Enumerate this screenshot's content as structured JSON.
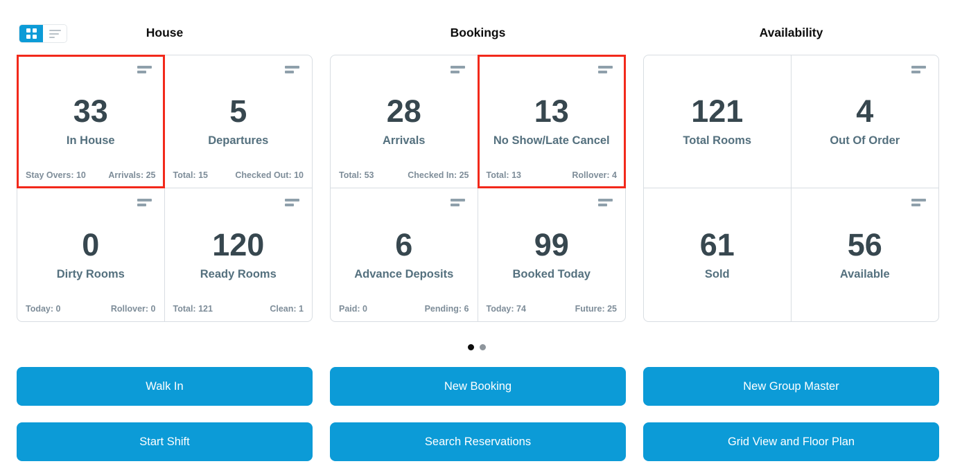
{
  "view_toggle": {
    "active_view": "grid"
  },
  "sections": [
    {
      "title": "House",
      "cards": [
        {
          "value": "33",
          "label": "In House",
          "highlighted": true,
          "has_menu_icon": true,
          "stat_left": "Stay Overs: 10",
          "stat_right": "Arrivals: 25"
        },
        {
          "value": "5",
          "label": "Departures",
          "highlighted": false,
          "has_menu_icon": true,
          "stat_left": "Total: 15",
          "stat_right": "Checked Out: 10"
        },
        {
          "value": "0",
          "label": "Dirty Rooms",
          "highlighted": false,
          "has_menu_icon": true,
          "stat_left": "Today: 0",
          "stat_right": "Rollover: 0"
        },
        {
          "value": "120",
          "label": "Ready Rooms",
          "highlighted": false,
          "has_menu_icon": true,
          "stat_left": "Total: 121",
          "stat_right": "Clean: 1"
        }
      ]
    },
    {
      "title": "Bookings",
      "cards": [
        {
          "value": "28",
          "label": "Arrivals",
          "highlighted": false,
          "has_menu_icon": true,
          "stat_left": "Total: 53",
          "stat_right": "Checked In: 25"
        },
        {
          "value": "13",
          "label": "No Show/Late Cancel",
          "highlighted": true,
          "has_menu_icon": true,
          "stat_left": "Total: 13",
          "stat_right": "Rollover: 4"
        },
        {
          "value": "6",
          "label": "Advance Deposits",
          "highlighted": false,
          "has_menu_icon": true,
          "stat_left": "Paid: 0",
          "stat_right": "Pending: 6"
        },
        {
          "value": "99",
          "label": "Booked Today",
          "highlighted": false,
          "has_menu_icon": true,
          "stat_left": "Today: 74",
          "stat_right": "Future: 25"
        }
      ]
    },
    {
      "title": "Availability",
      "cards": [
        {
          "value": "121",
          "label": "Total Rooms",
          "highlighted": false,
          "has_menu_icon": false,
          "stat_left": "",
          "stat_right": ""
        },
        {
          "value": "4",
          "label": "Out Of Order",
          "highlighted": false,
          "has_menu_icon": true,
          "stat_left": "",
          "stat_right": ""
        },
        {
          "value": "61",
          "label": "Sold",
          "highlighted": false,
          "has_menu_icon": false,
          "stat_left": "",
          "stat_right": ""
        },
        {
          "value": "56",
          "label": "Available",
          "highlighted": false,
          "has_menu_icon": true,
          "stat_left": "",
          "stat_right": ""
        }
      ]
    }
  ],
  "pagination": {
    "dots": [
      {
        "active": true
      },
      {
        "active": false
      }
    ]
  },
  "action_buttons": [
    {
      "label": "Walk In"
    },
    {
      "label": "New Booking"
    },
    {
      "label": "New Group Master"
    },
    {
      "label": "Start Shift"
    },
    {
      "label": "Search Reservations"
    },
    {
      "label": "Grid View and Floor Plan"
    }
  ],
  "colors": {
    "accent_blue": "#0c9bd7",
    "highlight_red": "#f2291b",
    "value_text": "#37474f",
    "label_text": "#54707e",
    "stat_text": "#7e8d99",
    "panel_border": "#d8dde2",
    "icon_bars": "#8fa0ab",
    "dot_active": "#0d0d0d",
    "dot_inactive": "#8e959c"
  }
}
